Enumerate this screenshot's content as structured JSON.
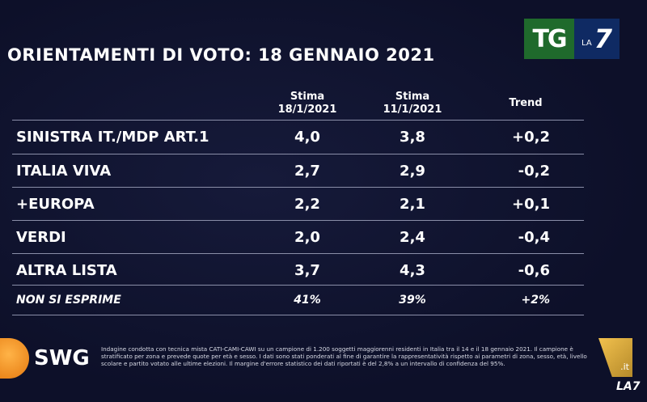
{
  "logo_top": {
    "tg": "TG",
    "la": "LA",
    "seven": "7"
  },
  "title": "ORIENTAMENTI DI VOTO: 18 GENNAIO 2021",
  "chart_data": {
    "type": "table",
    "title": "ORIENTAMENTI DI VOTO: 18 GENNAIO 2021",
    "columns": [
      {
        "line1": "Stima",
        "line2": "18/1/2021"
      },
      {
        "line1": "Stima",
        "line2": "11/1/2021"
      },
      {
        "line1": "Trend",
        "line2": ""
      }
    ],
    "rows": [
      {
        "label": "SINISTRA IT./MDP ART.1",
        "v1": "4,0",
        "v2": "3,8",
        "trend": "+0,2"
      },
      {
        "label": "ITALIA VIVA",
        "v1": "2,7",
        "v2": "2,9",
        "trend": "-0,2"
      },
      {
        "label": "+EUROPA",
        "v1": "2,2",
        "v2": "2,1",
        "trend": "+0,1"
      },
      {
        "label": "VERDI",
        "v1": "2,0",
        "v2": "2,4",
        "trend": "-0,4"
      },
      {
        "label": "ALTRA LISTA",
        "v1": "3,7",
        "v2": "4,3",
        "trend": "-0,6"
      },
      {
        "label": "NON SI ESPRIME",
        "v1": "41%",
        "v2": "39%",
        "trend": "+2%"
      }
    ]
  },
  "footer": {
    "swg": "SWG",
    "note": "Indagine condotta con tecnica mista CATI-CAMI-CAWI su un campione di 1.200 soggetti maggiorenni residenti in Italia tra il 14 e il 18 gennaio 2021. Il campione è stratificato per zona e prevede quote per età e sesso. I dati sono stati ponderati al fine di garantire la rappresentatività rispetto ai parametri di zona, sesso, età, livello scolare e partito votato alle ultime elezioni. Il margine d'errore statistico dei dati riportati è del 2,8% a un intervallo di confidenza del 95%.",
    "la7it": ".it",
    "la7_small": "LA7"
  }
}
